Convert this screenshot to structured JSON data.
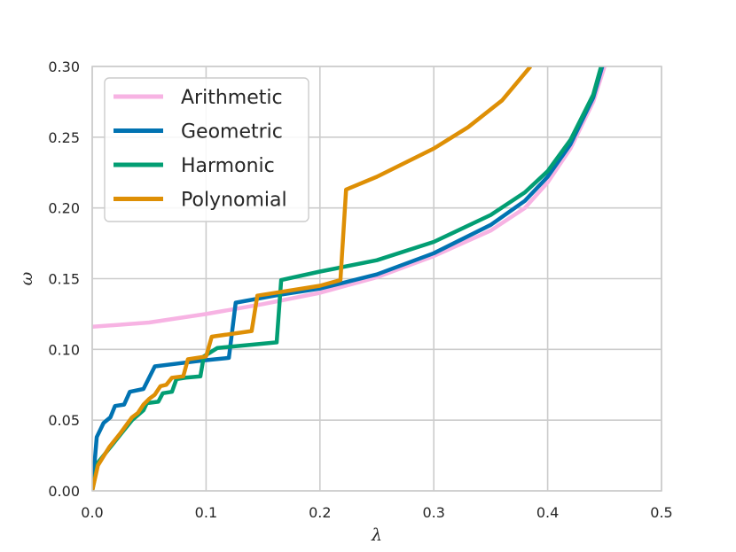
{
  "chart_data": {
    "type": "line",
    "title": "",
    "xlabel": "λ",
    "ylabel": "ω",
    "xlim": [
      0.0,
      0.5
    ],
    "ylim": [
      0.0,
      0.3
    ],
    "xticks": [
      0.0,
      0.1,
      0.2,
      0.3,
      0.4,
      0.5
    ],
    "yticks": [
      0.0,
      0.05,
      0.1,
      0.15,
      0.2,
      0.25,
      0.3
    ],
    "xtick_labels": [
      "0.0",
      "0.1",
      "0.2",
      "0.3",
      "0.4",
      "0.5"
    ],
    "ytick_labels": [
      "0.00",
      "0.05",
      "0.10",
      "0.15",
      "0.20",
      "0.25",
      "0.30"
    ],
    "grid": true,
    "legend_position": "top-left",
    "series": [
      {
        "name": "Arithmetic",
        "color": "#f7b3e3",
        "points": [
          [
            0.0,
            0.116
          ],
          [
            0.05,
            0.119
          ],
          [
            0.1,
            0.125
          ],
          [
            0.15,
            0.132
          ],
          [
            0.2,
            0.14
          ],
          [
            0.25,
            0.151
          ],
          [
            0.3,
            0.166
          ],
          [
            0.35,
            0.184
          ],
          [
            0.38,
            0.2
          ],
          [
            0.4,
            0.218
          ],
          [
            0.42,
            0.242
          ],
          [
            0.44,
            0.275
          ],
          [
            0.45,
            0.3
          ]
        ]
      },
      {
        "name": "Geometric",
        "color": "#0173b2",
        "points": [
          [
            0.0,
            0.0
          ],
          [
            0.004,
            0.038
          ],
          [
            0.01,
            0.048
          ],
          [
            0.016,
            0.052
          ],
          [
            0.02,
            0.06
          ],
          [
            0.028,
            0.061
          ],
          [
            0.033,
            0.07
          ],
          [
            0.045,
            0.072
          ],
          [
            0.055,
            0.088
          ],
          [
            0.075,
            0.09
          ],
          [
            0.095,
            0.092
          ],
          [
            0.12,
            0.094
          ],
          [
            0.126,
            0.133
          ],
          [
            0.16,
            0.138
          ],
          [
            0.2,
            0.143
          ],
          [
            0.25,
            0.153
          ],
          [
            0.3,
            0.168
          ],
          [
            0.35,
            0.188
          ],
          [
            0.38,
            0.205
          ],
          [
            0.4,
            0.222
          ],
          [
            0.42,
            0.245
          ],
          [
            0.44,
            0.278
          ],
          [
            0.448,
            0.3
          ]
        ]
      },
      {
        "name": "Harmonic",
        "color": "#029e73",
        "points": [
          [
            0.0,
            0.0
          ],
          [
            0.005,
            0.02
          ],
          [
            0.015,
            0.03
          ],
          [
            0.025,
            0.04
          ],
          [
            0.035,
            0.05
          ],
          [
            0.045,
            0.057
          ],
          [
            0.048,
            0.062
          ],
          [
            0.058,
            0.063
          ],
          [
            0.062,
            0.069
          ],
          [
            0.07,
            0.07
          ],
          [
            0.074,
            0.079
          ],
          [
            0.082,
            0.08
          ],
          [
            0.095,
            0.081
          ],
          [
            0.098,
            0.095
          ],
          [
            0.11,
            0.101
          ],
          [
            0.162,
            0.105
          ],
          [
            0.166,
            0.149
          ],
          [
            0.2,
            0.155
          ],
          [
            0.25,
            0.163
          ],
          [
            0.3,
            0.176
          ],
          [
            0.35,
            0.195
          ],
          [
            0.38,
            0.211
          ],
          [
            0.4,
            0.226
          ],
          [
            0.42,
            0.248
          ],
          [
            0.44,
            0.28
          ],
          [
            0.447,
            0.3
          ]
        ]
      },
      {
        "name": "Polynomial",
        "color": "#de8f05",
        "points": [
          [
            0.0,
            0.0
          ],
          [
            0.005,
            0.018
          ],
          [
            0.015,
            0.031
          ],
          [
            0.025,
            0.041
          ],
          [
            0.035,
            0.052
          ],
          [
            0.04,
            0.055
          ],
          [
            0.045,
            0.061
          ],
          [
            0.05,
            0.065
          ],
          [
            0.055,
            0.068
          ],
          [
            0.06,
            0.074
          ],
          [
            0.065,
            0.075
          ],
          [
            0.07,
            0.08
          ],
          [
            0.08,
            0.081
          ],
          [
            0.084,
            0.093
          ],
          [
            0.1,
            0.095
          ],
          [
            0.105,
            0.109
          ],
          [
            0.14,
            0.113
          ],
          [
            0.145,
            0.138
          ],
          [
            0.2,
            0.145
          ],
          [
            0.218,
            0.149
          ],
          [
            0.223,
            0.213
          ],
          [
            0.25,
            0.222
          ],
          [
            0.3,
            0.242
          ],
          [
            0.33,
            0.257
          ],
          [
            0.36,
            0.276
          ],
          [
            0.385,
            0.3
          ]
        ]
      }
    ]
  }
}
